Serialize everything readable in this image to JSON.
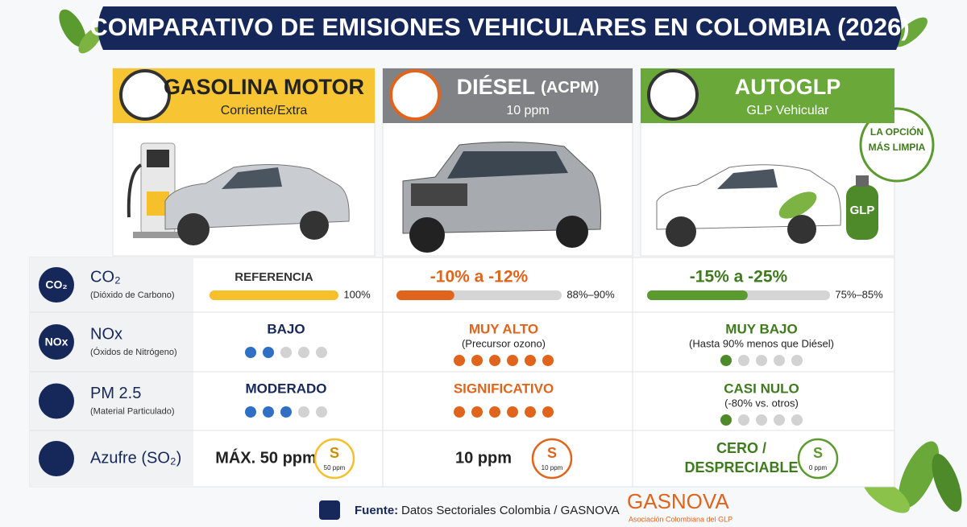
{
  "title": "COMPARATIVO DE EMISIONES VEHICULARES EN COLOMBIA (2026)",
  "columns": [
    {
      "name": "GASOLINA MOTOR",
      "subtitle": "Corriente/Extra"
    },
    {
      "name": "DIÉSEL",
      "name_suffix": "(ACPM)",
      "subtitle": "10 ppm"
    },
    {
      "name": "AUTOGLP",
      "subtitle": "GLP Vehicular"
    }
  ],
  "badge": [
    "LA OPCIÓN",
    "MÁS LIMPIA"
  ],
  "cylinder_label": "GLP",
  "rows": [
    {
      "icon_text": "CO₂",
      "label": "CO₂",
      "sublabel": "(Dióxido de Carbono)",
      "cells": [
        {
          "text": "REFERENCIA",
          "bar_fill": 100,
          "range": "100%"
        },
        {
          "text": "-10% a -12%",
          "bar_fill": 35,
          "range": "88%–90%"
        },
        {
          "text": "-15% a -25%",
          "bar_fill": 55,
          "range": "75%–85%"
        }
      ]
    },
    {
      "icon_text": "NOx",
      "label": "NOx",
      "sublabel": "(Óxidos de Nitrógeno)",
      "cells": [
        {
          "text": "BAJO",
          "rating": 2,
          "rating_of": 5
        },
        {
          "text": "MUY ALTO",
          "note": "(Precursor ozono)",
          "rating": 6,
          "rating_of": 6
        },
        {
          "text": "MUY BAJO",
          "note": "(Hasta 90% menos que Diésel)",
          "rating": 1,
          "rating_of": 5
        }
      ]
    },
    {
      "label": "PM 2.5",
      "sublabel": "(Material Particulado)",
      "cells": [
        {
          "text": "MODERADO",
          "rating": 3,
          "rating_of": 5
        },
        {
          "text": "SIGNIFICATIVO",
          "rating": 6,
          "rating_of": 6
        },
        {
          "text": "CASI NULO",
          "note": "(-80% vs. otros)",
          "rating": 1,
          "rating_of": 5
        }
      ]
    },
    {
      "label": "Azufre (SO₂)",
      "cells": [
        {
          "text_lines": [
            "MÁX. 50 ppm"
          ],
          "symbol": "S",
          "symbol_note": "50 ppm"
        },
        {
          "text_lines": [
            "10 ppm"
          ],
          "symbol": "S",
          "symbol_note": "10 ppm"
        },
        {
          "text_lines": [
            "CERO /",
            "DESPRECIABLE"
          ],
          "symbol": "S",
          "symbol_note": "0 ppm"
        }
      ]
    }
  ],
  "footer": {
    "label": "Fuente:",
    "source": "Datos Sectoriales Colombia / GASNOVA",
    "logo": "GASNOVA",
    "logo_sub": "Asociación Colombiana del GLP"
  }
}
